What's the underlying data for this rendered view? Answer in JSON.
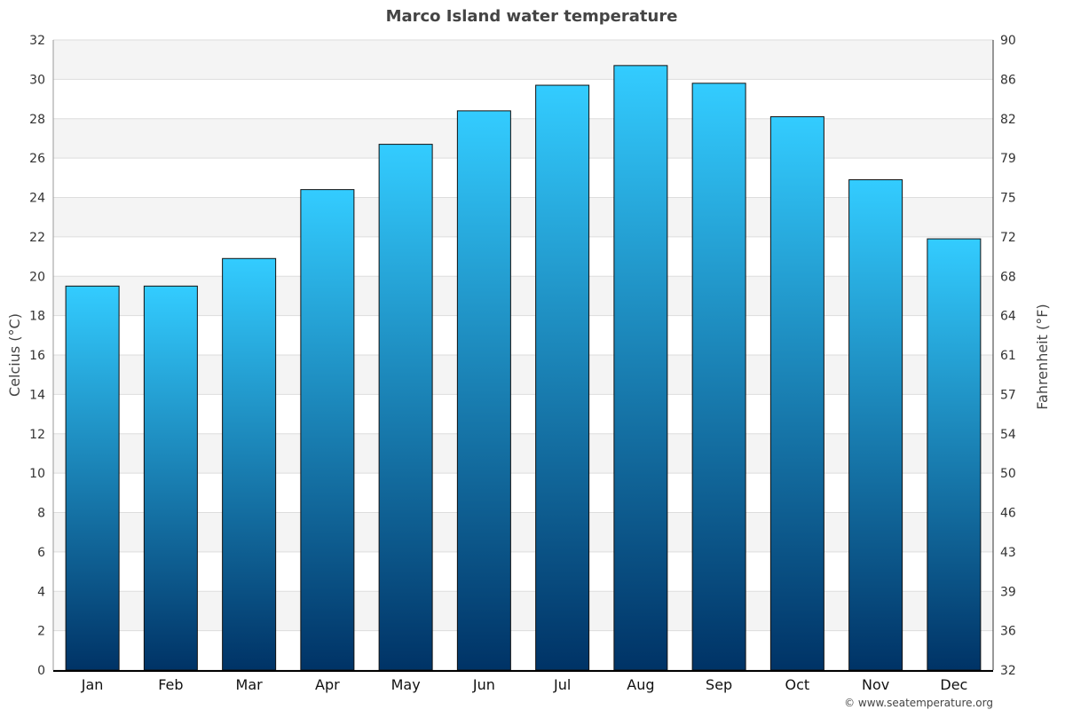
{
  "chart_data": {
    "type": "bar",
    "title": "Marco Island water temperature",
    "categories": [
      "Jan",
      "Feb",
      "Mar",
      "Apr",
      "May",
      "Jun",
      "Jul",
      "Aug",
      "Sep",
      "Oct",
      "Nov",
      "Dec"
    ],
    "values": [
      19.5,
      19.5,
      20.9,
      24.4,
      26.7,
      28.4,
      29.7,
      30.7,
      29.8,
      28.1,
      24.9,
      21.9
    ],
    "ylabel": "Celcius (°C)",
    "y2label": "Fahrenheit (°F)",
    "ylim": [
      0,
      32
    ],
    "y_ticks": [
      "0",
      "2",
      "4",
      "6",
      "8",
      "10",
      "12",
      "14",
      "16",
      "18",
      "20",
      "22",
      "24",
      "26",
      "28",
      "30",
      "32"
    ],
    "y2_ticks": [
      "32",
      "36",
      "39",
      "43",
      "46",
      "50",
      "54",
      "57",
      "61",
      "64",
      "68",
      "72",
      "75",
      "79",
      "82",
      "86",
      "90"
    ],
    "grid": true,
    "colors": {
      "bar_top": "#33ccff",
      "bar_bottom": "#003366",
      "bar_border": "#111111",
      "band": "#f4f4f4",
      "grid": "#dddddd"
    }
  },
  "credit": "© www.seatemperature.org"
}
